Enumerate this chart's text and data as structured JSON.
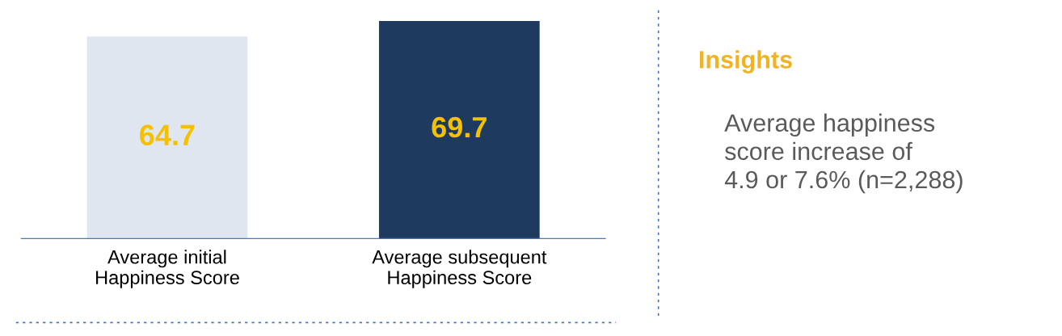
{
  "chart_data": [
    {
      "type": "bar",
      "categories": [
        "Average initial\nHappiness Score",
        "Average subsequent\nHappiness Score"
      ],
      "values": [
        64.7,
        69.7
      ],
      "colors": [
        "#dfe6f0",
        "#1f3a5f"
      ],
      "data_labels": true,
      "grid": false
    },
    {
      "type": "other",
      "title": "Insights",
      "annotations": [
        "Average happiness\nscore increase of\n4.9 or 7.6% (n=2,288)"
      ]
    }
  ]
}
